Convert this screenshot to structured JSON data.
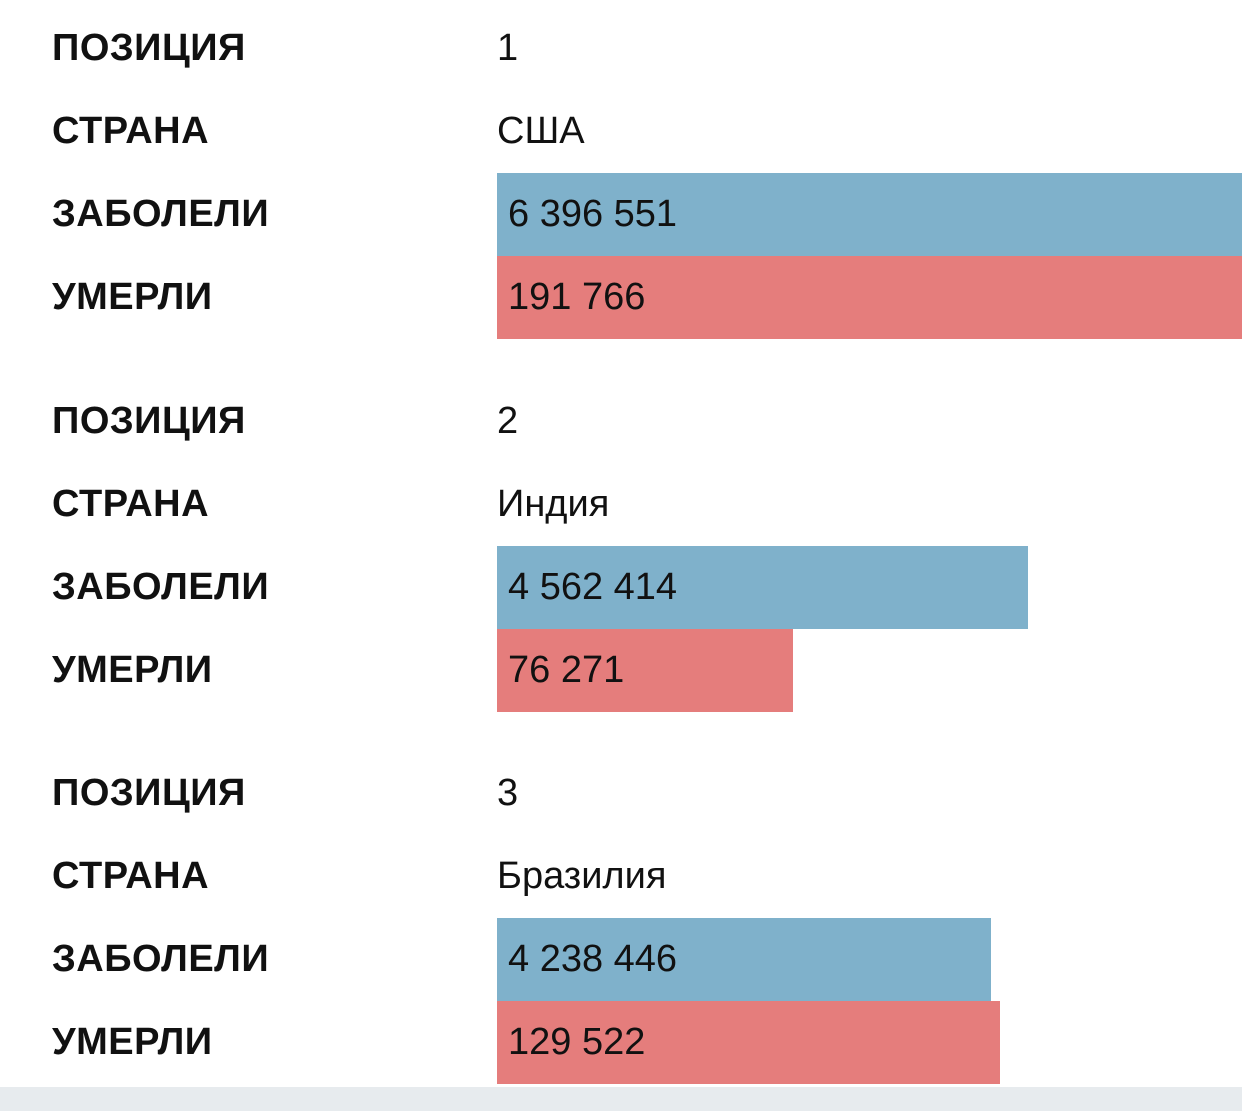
{
  "labels": {
    "position": "ПОЗИЦИЯ",
    "country": "СТРАНА",
    "cases": "ЗАБОЛЕЛИ",
    "deaths": "УМЕРЛИ"
  },
  "colors": {
    "cases": "#7fb1cb",
    "deaths": "#e57d7c"
  },
  "records": [
    {
      "position": "1",
      "country": "США",
      "cases": "6 396 551",
      "deaths": "191 766"
    },
    {
      "position": "2",
      "country": "Индия",
      "cases": "4 562 414",
      "deaths": "76 271"
    },
    {
      "position": "3",
      "country": "Бразилия",
      "cases": "4 238 446",
      "deaths": "129 522"
    }
  ],
  "chart_data": {
    "type": "bar",
    "categories": [
      "США",
      "Индия",
      "Бразилия"
    ],
    "series": [
      {
        "name": "ЗАБОЛЕЛИ",
        "values": [
          6396551,
          4562414,
          4238446
        ]
      },
      {
        "name": "УМЕРЛИ",
        "values": [
          191766,
          76271,
          129522
        ]
      }
    ]
  }
}
